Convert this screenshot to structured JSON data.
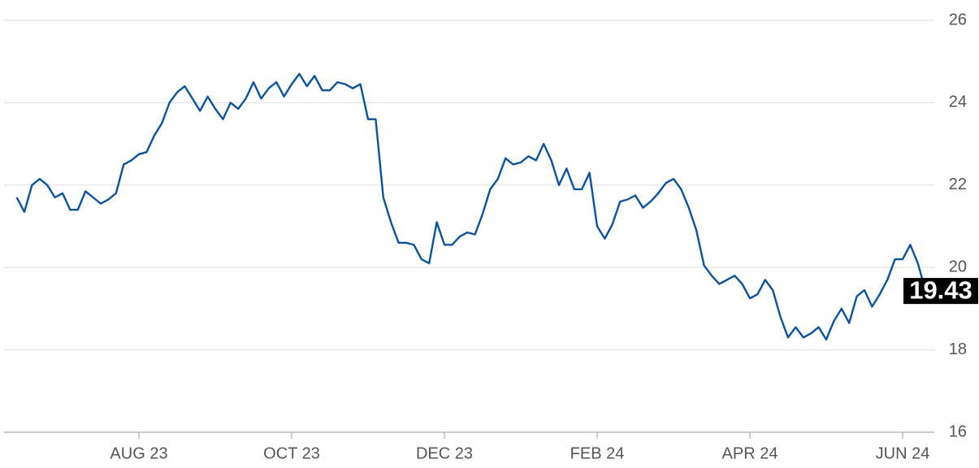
{
  "chart_data": {
    "type": "line",
    "categories": [
      null,
      null,
      null,
      null,
      null,
      null,
      null,
      null,
      null,
      null,
      null,
      null,
      null,
      null,
      null,
      null,
      "AUG 23",
      null,
      null,
      null,
      null,
      null,
      null,
      null,
      null,
      null,
      null,
      null,
      null,
      null,
      null,
      null,
      null,
      null,
      null,
      null,
      "OCT 23",
      null,
      null,
      null,
      null,
      null,
      null,
      null,
      null,
      null,
      null,
      null,
      null,
      null,
      null,
      null,
      null,
      null,
      null,
      null,
      "DEC 23",
      null,
      null,
      null,
      null,
      null,
      null,
      null,
      null,
      null,
      null,
      null,
      null,
      null,
      null,
      null,
      null,
      null,
      null,
      null,
      "FEB 24",
      null,
      null,
      null,
      null,
      null,
      null,
      null,
      null,
      null,
      null,
      null,
      null,
      null,
      null,
      null,
      null,
      null,
      null,
      null,
      "APR 24",
      null,
      null,
      null,
      null,
      null,
      null,
      null,
      null,
      null,
      null,
      null,
      null,
      null,
      null,
      null,
      null,
      null,
      null,
      null,
      "JUN 24",
      null,
      null,
      null
    ],
    "series": [
      {
        "color": "#0b539f",
        "values": [
          21.7,
          21.35,
          22.0,
          22.15,
          22.0,
          21.7,
          21.8,
          21.4,
          21.4,
          21.85,
          21.7,
          21.55,
          21.65,
          21.8,
          22.5,
          22.6,
          22.75,
          22.8,
          23.2,
          23.5,
          24.0,
          24.25,
          24.4,
          24.1,
          23.8,
          24.15,
          23.85,
          23.6,
          24.0,
          23.85,
          24.1,
          24.5,
          24.1,
          24.35,
          24.5,
          24.15,
          24.45,
          24.7,
          24.4,
          24.65,
          24.3,
          24.3,
          24.5,
          24.45,
          24.35,
          24.45,
          23.6,
          23.6,
          21.7,
          21.1,
          20.6,
          20.6,
          20.55,
          20.2,
          20.1,
          21.1,
          20.55,
          20.55,
          20.75,
          20.85,
          20.8,
          21.3,
          21.9,
          22.15,
          22.65,
          22.5,
          22.55,
          22.7,
          22.6,
          23.0,
          22.6,
          22.0,
          22.4,
          21.9,
          21.9,
          22.3,
          21.0,
          20.7,
          21.05,
          21.6,
          21.65,
          21.75,
          21.45,
          21.6,
          21.8,
          22.05,
          22.15,
          21.9,
          21.45,
          20.9,
          20.05,
          19.8,
          19.6,
          19.7,
          19.8,
          19.6,
          19.25,
          19.35,
          19.7,
          19.45,
          18.8,
          18.3,
          18.55,
          18.3,
          18.4,
          18.55,
          18.25,
          18.7,
          19.0,
          18.65,
          19.3,
          19.45,
          19.05,
          19.35,
          19.7,
          20.2,
          20.2,
          20.55,
          20.1,
          19.43
        ]
      }
    ],
    "ylim": [
      16,
      26
    ],
    "yticks": [
      16,
      18,
      20,
      22,
      24,
      26
    ],
    "grid": true,
    "axis_side": "right"
  }
}
